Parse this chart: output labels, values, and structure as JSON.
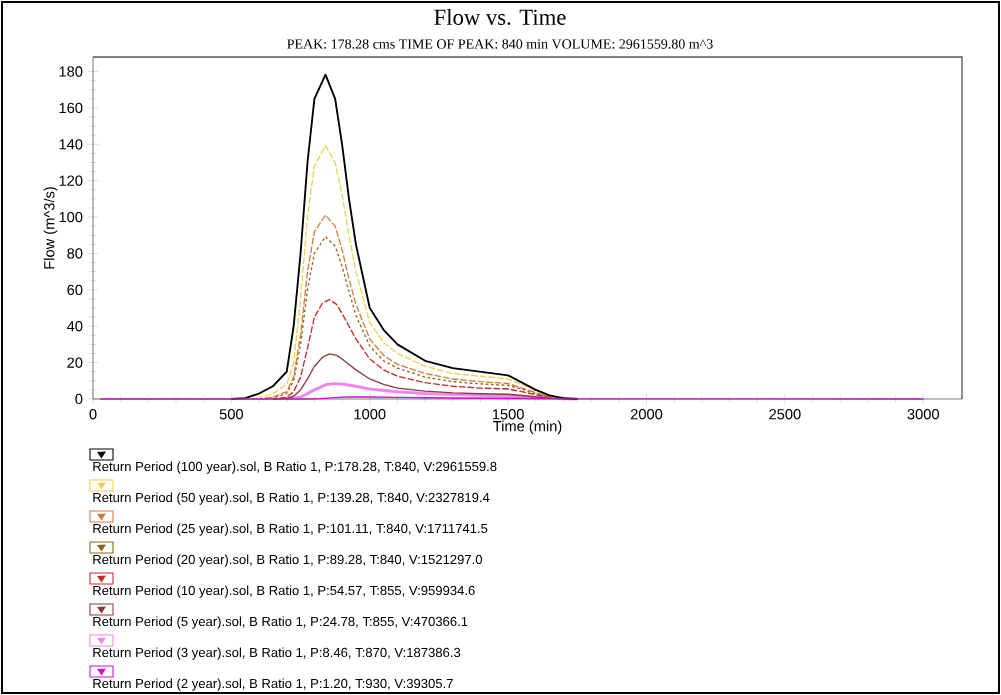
{
  "chart_data": {
    "type": "line",
    "title": "Flow vs. Time",
    "subtitle": "PEAK: 178.28 cms  TIME OF PEAK: 840 min  VOLUME: 2961559.80 m^3",
    "xlabel": "Time (min)",
    "ylabel": "Flow (m^3/s)",
    "xlim": [
      0,
      3140
    ],
    "ylim": [
      0,
      188
    ],
    "xticks": [
      0,
      500,
      1000,
      1500,
      2000,
      2500,
      3000
    ],
    "yticks": [
      0,
      20,
      40,
      60,
      80,
      100,
      120,
      140,
      160,
      180
    ],
    "grid": false,
    "legend": "bottom",
    "series": [
      {
        "name": "Return Period (100 year).sol, B Ratio 1, P:178.28, T:840, V:2961559.8",
        "color": "#000000",
        "line_style": "solid",
        "x": [
          500,
          550,
          600,
          650,
          700,
          725,
          750,
          775,
          800,
          840,
          875,
          900,
          925,
          950,
          1000,
          1050,
          1100,
          1200,
          1300,
          1400,
          1500,
          1550,
          1600,
          1650,
          1700,
          1750
        ],
        "values": [
          0,
          0.5,
          3,
          7,
          15,
          40,
          80,
          130,
          165,
          178.28,
          165,
          140,
          110,
          85,
          50,
          38,
          30,
          21,
          17,
          15,
          13,
          9,
          5,
          2,
          0.5,
          0
        ]
      },
      {
        "name": "Return Period (50 year).sol, B Ratio 1, P:139.28, T:840, V:2327819.4",
        "color": "#f0d050",
        "line_style": "dashed",
        "x": [
          550,
          600,
          650,
          700,
          725,
          750,
          775,
          800,
          840,
          875,
          900,
          925,
          950,
          1000,
          1050,
          1100,
          1200,
          1300,
          1400,
          1500,
          1550,
          1600
        ],
        "values": [
          0,
          0.5,
          3,
          8,
          20,
          55,
          100,
          128,
          139.28,
          130,
          112,
          90,
          70,
          42,
          31,
          25,
          18,
          14,
          12.5,
          11,
          8,
          4.5
        ]
      },
      {
        "name": "Return Period (25 year).sol, B Ratio 1, P:101.11, T:840, V:1711741.5",
        "color": "#d87a3a",
        "line_style": "dashed",
        "x": [
          600,
          650,
          700,
          725,
          750,
          775,
          800,
          840,
          875,
          900,
          925,
          950,
          1000,
          1050,
          1100,
          1200,
          1300,
          1400,
          1500,
          1550,
          1600,
          1650,
          1700,
          1750
        ],
        "values": [
          0,
          1,
          4,
          12,
          35,
          70,
          92,
          101.11,
          95,
          82,
          66,
          52,
          33,
          24,
          19,
          14,
          11,
          9.5,
          8.5,
          6,
          3.5,
          1.5,
          0.4,
          0
        ]
      },
      {
        "name": "Return Period (20 year).sol, B Ratio 1, P:89.28, T:840, V:1521297.0",
        "color": "#8b6418",
        "line_style": "dotted",
        "x": [
          600,
          650,
          700,
          725,
          750,
          775,
          800,
          840,
          875,
          900,
          925,
          950,
          1000,
          1050,
          1100,
          1200,
          1300,
          1400,
          1500,
          1550,
          1600,
          1650,
          1700,
          1750
        ],
        "values": [
          0,
          0.5,
          3,
          10,
          30,
          60,
          80,
          89.28,
          84,
          73,
          59,
          46,
          29,
          21,
          17,
          12,
          9.5,
          8.3,
          7.5,
          5.3,
          3,
          1.2,
          0.3,
          0
        ]
      },
      {
        "name": "Return Period (10 year).sol, B Ratio 1, P:54.57, T:855, V:959934.6",
        "color": "#c82828",
        "line_style": "dashed",
        "x": [
          650,
          700,
          725,
          750,
          775,
          800,
          830,
          855,
          880,
          900,
          925,
          950,
          1000,
          1050,
          1100,
          1200,
          1300,
          1400,
          1500,
          1550,
          1600,
          1650,
          1700,
          1750
        ],
        "values": [
          0,
          1,
          4,
          12,
          28,
          45,
          53,
          54.57,
          52,
          47,
          40,
          33,
          22,
          16,
          12.5,
          9,
          7,
          6,
          5.5,
          4,
          2.3,
          1,
          0.2,
          0
        ]
      },
      {
        "name": "Return Period (5 year).sol, B Ratio 1, P:24.78, T:855, V:470366.1",
        "color": "#8b3a3a",
        "line_style": "solid",
        "x": [
          650,
          700,
          725,
          750,
          775,
          800,
          830,
          855,
          880,
          900,
          925,
          950,
          1000,
          1050,
          1100,
          1200,
          1300,
          1400,
          1500,
          1550,
          1600,
          1650,
          1700,
          1750
        ],
        "values": [
          0,
          0.3,
          1.5,
          5,
          11,
          18,
          23,
          24.78,
          24,
          22,
          19,
          16,
          11,
          8,
          6,
          4.3,
          3.4,
          2.9,
          2.6,
          1.9,
          1.1,
          0.5,
          0.1,
          0
        ]
      },
      {
        "name": "Return Period (3 year).sol, B Ratio 1, P:8.46, T:870, V:187386.3",
        "color": "#ee88ee",
        "line_style": "solid",
        "x": [
          700,
          750,
          800,
          840,
          870,
          900,
          950,
          1000,
          1100,
          1200,
          1300,
          1400,
          1500,
          1600,
          1700,
          1750
        ],
        "values": [
          0,
          1,
          5,
          7.8,
          8.46,
          8.2,
          7,
          5.5,
          4,
          3,
          2.4,
          2,
          1.7,
          0.8,
          0.1,
          0
        ]
      },
      {
        "name": "Return Period (2 year).sol, B Ratio 1, P:1.20, T:930, V:39305.7",
        "color": "#cc10cc",
        "line_style": "solid",
        "x": [
          25,
          750,
          800,
          850,
          900,
          930,
          1000,
          1100,
          1200,
          1300,
          1500,
          1600,
          1700,
          3000
        ],
        "values": [
          0,
          0,
          0.1,
          0.5,
          1.05,
          1.2,
          1.1,
          0.9,
          0.7,
          0.55,
          0.4,
          0.2,
          0.05,
          0
        ]
      }
    ]
  }
}
